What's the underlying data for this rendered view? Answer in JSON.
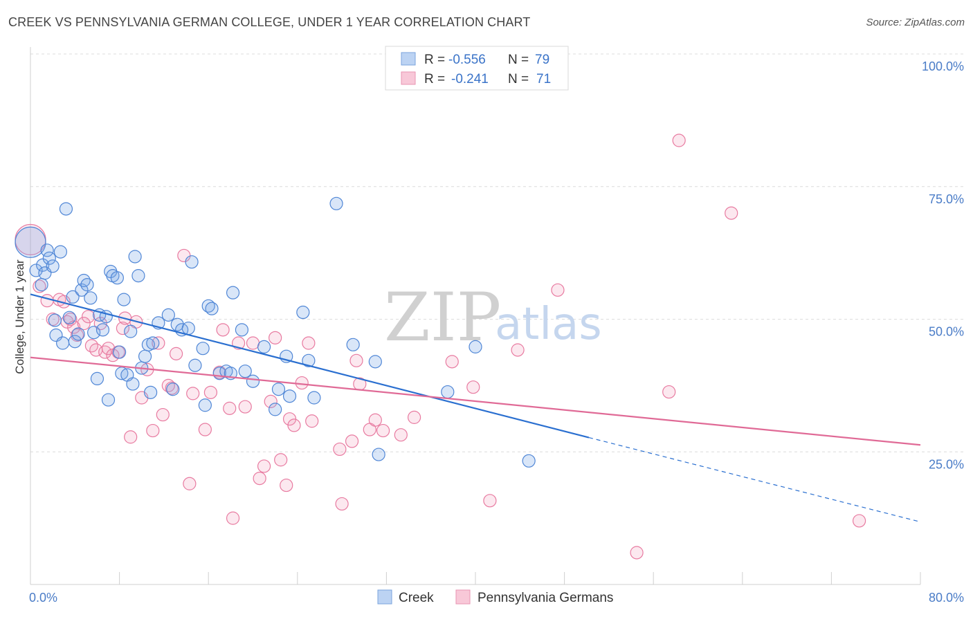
{
  "title": "CREEK VS PENNSYLVANIA GERMAN COLLEGE, UNDER 1 YEAR CORRELATION CHART",
  "source": "Source: ZipAtlas.com",
  "watermark": {
    "zip": "ZIP",
    "atlas": "atlas"
  },
  "colors": {
    "blue": "#4f86d6",
    "blue_fill": "rgba(120,165,230,0.28)",
    "pink": "#e87aa0",
    "pink_fill": "rgba(240,150,180,0.22)",
    "blue_line": "#2a6fd0",
    "pink_line": "#e06a96"
  },
  "legend": {
    "rows": [
      {
        "r_label": "R = ",
        "r_value": "-0.556",
        "n_label": "N = ",
        "n_value": "79"
      },
      {
        "r_label": "R = ",
        "r_value": "-0.241",
        "n_label": "N = ",
        "n_value": "71"
      }
    ],
    "bottom": [
      "Creek",
      "Pennsylvania Germans"
    ]
  },
  "chart_data": {
    "type": "scatter",
    "title": "CREEK VS PENNSYLVANIA GERMAN COLLEGE, UNDER 1 YEAR CORRELATION CHART",
    "xlabel": "",
    "ylabel": "College, Under 1 year",
    "xlim": [
      0,
      80
    ],
    "ylim": [
      0,
      100
    ],
    "x_tick_labels": [
      "0.0%",
      "80.0%"
    ],
    "y_ticks": [
      25,
      50,
      75,
      100
    ],
    "y_tick_labels": [
      "25.0%",
      "50.0%",
      "75.0%",
      "100.0%"
    ],
    "grid": true,
    "legend_position": "top-center",
    "series": [
      {
        "name": "Creek",
        "trend": {
          "x": [
            0,
            50.2
          ],
          "y": [
            54.7,
            27.7
          ],
          "dashed_to": [
            80,
            11.8
          ]
        },
        "points": [
          [
            0,
            64.5
          ],
          [
            0.5,
            59.2
          ],
          [
            1.0,
            56.5
          ],
          [
            1.1,
            60.2
          ],
          [
            1.3,
            58.7
          ],
          [
            1.5,
            63.0
          ],
          [
            1.7,
            61.5
          ],
          [
            2.0,
            60.0
          ],
          [
            2.2,
            49.8
          ],
          [
            2.3,
            47.0
          ],
          [
            2.7,
            62.7
          ],
          [
            2.9,
            45.5
          ],
          [
            3.2,
            70.8
          ],
          [
            3.5,
            50.3
          ],
          [
            3.8,
            54.2
          ],
          [
            4.0,
            45.8
          ],
          [
            4.3,
            47.2
          ],
          [
            4.6,
            55.5
          ],
          [
            4.8,
            57.3
          ],
          [
            5.1,
            56.5
          ],
          [
            5.4,
            54.0
          ],
          [
            5.7,
            47.5
          ],
          [
            6.0,
            38.8
          ],
          [
            6.2,
            50.8
          ],
          [
            6.5,
            48.0
          ],
          [
            6.8,
            50.5
          ],
          [
            7.0,
            34.8
          ],
          [
            7.2,
            59.0
          ],
          [
            7.4,
            58.2
          ],
          [
            7.8,
            57.8
          ],
          [
            8.0,
            43.8
          ],
          [
            8.2,
            39.8
          ],
          [
            8.4,
            53.7
          ],
          [
            8.7,
            39.5
          ],
          [
            9.0,
            47.7
          ],
          [
            9.2,
            37.8
          ],
          [
            9.4,
            61.8
          ],
          [
            9.7,
            58.2
          ],
          [
            10.0,
            40.8
          ],
          [
            10.3,
            43.0
          ],
          [
            10.6,
            45.2
          ],
          [
            10.8,
            36.2
          ],
          [
            11.0,
            45.5
          ],
          [
            11.5,
            49.3
          ],
          [
            12.4,
            50.8
          ],
          [
            12.8,
            36.8
          ],
          [
            13.2,
            49.0
          ],
          [
            13.6,
            48.0
          ],
          [
            14.2,
            48.3
          ],
          [
            14.5,
            60.8
          ],
          [
            14.8,
            41.3
          ],
          [
            15.5,
            44.5
          ],
          [
            15.7,
            33.8
          ],
          [
            16.0,
            52.5
          ],
          [
            16.3,
            52.0
          ],
          [
            17.0,
            39.8
          ],
          [
            17.6,
            40.2
          ],
          [
            18.0,
            39.8
          ],
          [
            18.2,
            55.0
          ],
          [
            19.0,
            48.0
          ],
          [
            19.3,
            40.2
          ],
          [
            20.0,
            38.3
          ],
          [
            21.0,
            44.8
          ],
          [
            22.0,
            33.0
          ],
          [
            22.3,
            36.8
          ],
          [
            23.0,
            43.0
          ],
          [
            23.3,
            35.5
          ],
          [
            24.5,
            51.3
          ],
          [
            25.0,
            42.2
          ],
          [
            25.5,
            35.2
          ],
          [
            27.5,
            71.8
          ],
          [
            29.0,
            45.2
          ],
          [
            31.0,
            42.0
          ],
          [
            31.3,
            24.5
          ],
          [
            37.5,
            36.3
          ],
          [
            40.0,
            44.8
          ],
          [
            44.8,
            23.3
          ]
        ]
      },
      {
        "name": "Pennsylvania Germans",
        "trend": {
          "x": [
            0,
            80
          ],
          "y": [
            42.8,
            26.3
          ]
        },
        "points": [
          [
            0,
            65.0
          ],
          [
            0.8,
            56.2
          ],
          [
            1.5,
            53.5
          ],
          [
            2.0,
            50.0
          ],
          [
            2.6,
            53.7
          ],
          [
            3.0,
            53.3
          ],
          [
            3.3,
            49.5
          ],
          [
            3.6,
            50.0
          ],
          [
            3.9,
            48.5
          ],
          [
            4.2,
            47.0
          ],
          [
            4.8,
            49.2
          ],
          [
            5.2,
            50.5
          ],
          [
            5.5,
            45.0
          ],
          [
            5.9,
            44.2
          ],
          [
            6.3,
            49.2
          ],
          [
            6.7,
            43.8
          ],
          [
            7.0,
            44.5
          ],
          [
            7.4,
            43.2
          ],
          [
            7.9,
            43.8
          ],
          [
            8.3,
            48.3
          ],
          [
            8.5,
            50.2
          ],
          [
            9.0,
            27.8
          ],
          [
            9.5,
            49.5
          ],
          [
            10.0,
            35.2
          ],
          [
            10.5,
            40.5
          ],
          [
            11.0,
            29.0
          ],
          [
            11.5,
            45.5
          ],
          [
            11.9,
            32.0
          ],
          [
            12.4,
            37.5
          ],
          [
            12.7,
            37.0
          ],
          [
            13.1,
            43.5
          ],
          [
            13.8,
            62.0
          ],
          [
            14.3,
            19.0
          ],
          [
            14.6,
            36.0
          ],
          [
            15.7,
            29.2
          ],
          [
            16.2,
            36.2
          ],
          [
            17.0,
            40.0
          ],
          [
            17.3,
            48.0
          ],
          [
            17.9,
            33.2
          ],
          [
            18.2,
            12.5
          ],
          [
            18.7,
            45.5
          ],
          [
            19.3,
            33.5
          ],
          [
            20.0,
            45.5
          ],
          [
            20.6,
            20.0
          ],
          [
            21.0,
            22.3
          ],
          [
            21.6,
            34.5
          ],
          [
            22.0,
            46.5
          ],
          [
            22.5,
            23.5
          ],
          [
            23.0,
            18.7
          ],
          [
            23.3,
            31.2
          ],
          [
            23.7,
            30.0
          ],
          [
            24.4,
            38.0
          ],
          [
            25.0,
            45.5
          ],
          [
            25.3,
            30.8
          ],
          [
            27.8,
            25.5
          ],
          [
            28.0,
            15.2
          ],
          [
            28.9,
            27.0
          ],
          [
            29.3,
            42.2
          ],
          [
            29.6,
            37.8
          ],
          [
            30.5,
            29.2
          ],
          [
            31.0,
            31.0
          ],
          [
            31.7,
            29.0
          ],
          [
            33.3,
            28.2
          ],
          [
            34.5,
            31.5
          ],
          [
            37.9,
            42.0
          ],
          [
            39.8,
            37.2
          ],
          [
            41.3,
            15.8
          ],
          [
            43.8,
            44.2
          ],
          [
            47.4,
            55.5
          ],
          [
            54.5,
            6.0
          ],
          [
            57.4,
            36.3
          ],
          [
            58.3,
            83.7
          ],
          [
            63.0,
            70.0
          ],
          [
            74.5,
            12.0
          ]
        ]
      }
    ]
  }
}
